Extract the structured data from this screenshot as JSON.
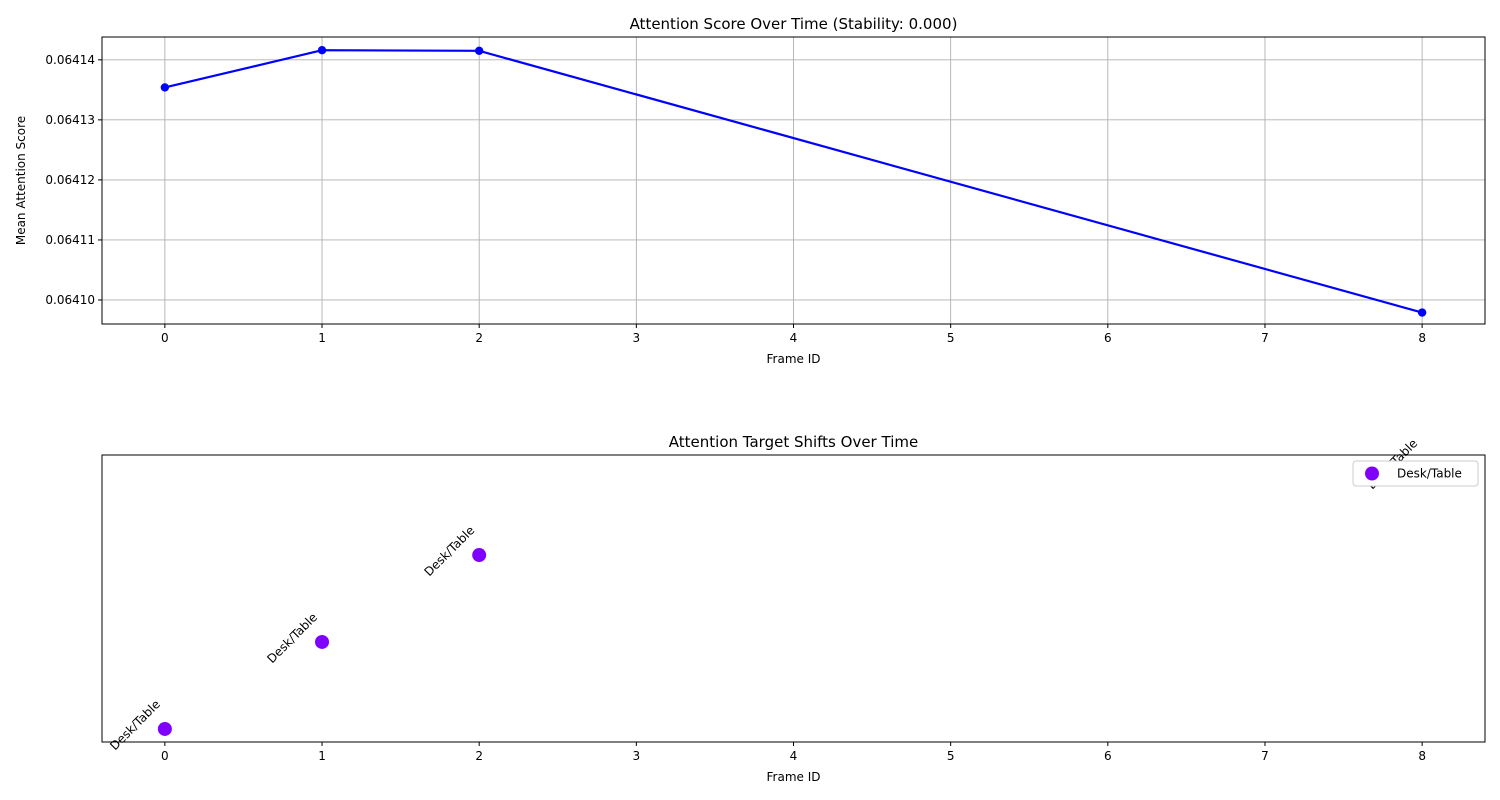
{
  "chart_data": [
    {
      "type": "line",
      "title": "Attention Score Over Time (Stability: 0.000)",
      "xlabel": "Frame ID",
      "ylabel": "Mean Attention Score",
      "xlim": [
        -0.4,
        8.4
      ],
      "ylim": [
        0.064096,
        0.0641438
      ],
      "xticks": [
        0,
        1,
        2,
        3,
        4,
        5,
        6,
        7,
        8
      ],
      "yticks": [
        0.0641,
        0.06411,
        0.06412,
        0.06413,
        0.06414
      ],
      "ytick_labels": [
        "0.06410",
        "0.06411",
        "0.06412",
        "0.06413",
        "0.06414"
      ],
      "grid": true,
      "series": [
        {
          "color": "#0000ff",
          "x": [
            0,
            1,
            2,
            8
          ],
          "y": [
            0.0641354,
            0.0641416,
            0.0641415,
            0.0640979
          ]
        }
      ]
    },
    {
      "type": "scatter",
      "title": "Attention Target Shifts Over Time",
      "xlabel": "Frame ID",
      "ylabel": "",
      "xlim": [
        -0.4,
        8.4
      ],
      "ylim": [
        -0.15,
        3.15
      ],
      "xticks": [
        0,
        1,
        2,
        3,
        4,
        5,
        6,
        7,
        8
      ],
      "grid": false,
      "legend": {
        "position": "upper right",
        "entries": [
          {
            "label": "Desk/Table",
            "color": "#8000ff"
          }
        ]
      },
      "points": [
        {
          "x": 0,
          "y": 0,
          "label": "Desk/Table"
        },
        {
          "x": 1,
          "y": 1,
          "label": "Desk/Table"
        },
        {
          "x": 2,
          "y": 2,
          "label": "Desk/Table"
        },
        {
          "x": 8,
          "y": 3,
          "label": "Desk/Table"
        }
      ],
      "color": "#8000ff"
    }
  ]
}
